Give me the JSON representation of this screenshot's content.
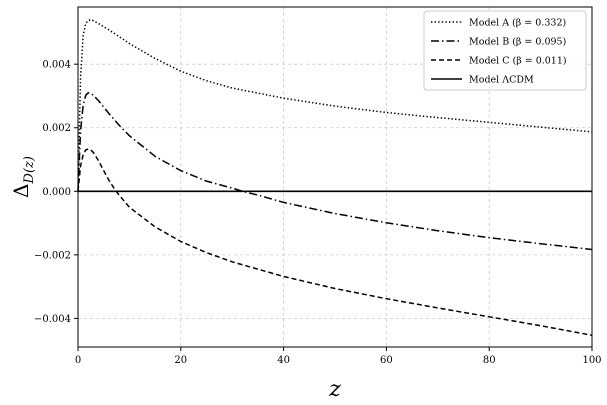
{
  "chart_data": {
    "type": "line",
    "xlabel": "z",
    "ylabel": "Δ",
    "ylabel_subscript": "D(z)",
    "xlim": [
      0,
      100
    ],
    "ylim": [
      -0.0049,
      0.0058
    ],
    "xticks": [
      0,
      20,
      40,
      60,
      80,
      100
    ],
    "xtick_labels": [
      "0",
      "20",
      "40",
      "60",
      "80",
      "100"
    ],
    "yticks": [
      -0.004,
      -0.002,
      0.0,
      0.002,
      0.004
    ],
    "ytick_labels": [
      "−0.004",
      "−0.002",
      "0.000",
      "0.002",
      "0.004"
    ],
    "grid": true,
    "legend_position": "top-right",
    "series": [
      {
        "name": "Model A (β = 0.332)",
        "style": "dotted",
        "color": "#000000",
        "x": [
          0,
          0.5,
          1,
          1.5,
          2,
          2.5,
          3,
          4,
          5,
          6,
          8,
          10,
          15,
          20,
          25,
          30,
          40,
          50,
          60,
          70,
          80,
          90,
          100
        ],
        "y": [
          0.0,
          0.0036,
          0.0049,
          0.00528,
          0.00538,
          0.0054,
          0.00537,
          0.00528,
          0.00518,
          0.00508,
          0.00487,
          0.00465,
          0.00418,
          0.00378,
          0.00348,
          0.00325,
          0.00293,
          0.00268,
          0.00248,
          0.00232,
          0.00217,
          0.00202,
          0.00187
        ]
      },
      {
        "name": "Model B (β = 0.095)",
        "style": "dashdot",
        "color": "#000000",
        "x": [
          0,
          0.5,
          1,
          1.5,
          2,
          2.5,
          3,
          4,
          5,
          6,
          8,
          10,
          15,
          20,
          25,
          30,
          32,
          35,
          40,
          50,
          60,
          70,
          80,
          90,
          100
        ],
        "y": [
          0.0,
          0.0019,
          0.0027,
          0.00302,
          0.0031,
          0.00308,
          0.00302,
          0.00285,
          0.00265,
          0.00245,
          0.00208,
          0.00175,
          0.0011,
          0.00065,
          0.00032,
          0.0001,
          0.0,
          -0.00012,
          -0.00035,
          -0.0007,
          -0.00099,
          -0.00124,
          -0.00146,
          -0.00165,
          -0.00183
        ]
      },
      {
        "name": "Model C (β = 0.011)",
        "style": "dashed",
        "color": "#000000",
        "x": [
          0,
          0.5,
          1,
          1.5,
          2,
          2.5,
          3,
          4,
          5,
          6,
          7,
          8,
          10,
          15,
          20,
          25,
          30,
          40,
          50,
          60,
          70,
          80,
          90,
          100
        ],
        "y": [
          0.0,
          0.0008,
          0.00115,
          0.0013,
          0.00133,
          0.0013,
          0.00122,
          0.00096,
          0.00065,
          0.00035,
          0.0001,
          -0.00012,
          -0.0005,
          -0.00112,
          -0.00158,
          -0.00193,
          -0.00222,
          -0.00268,
          -0.00306,
          -0.00338,
          -0.00367,
          -0.00395,
          -0.00423,
          -0.00453
        ]
      },
      {
        "name": "Model ΛCDM",
        "style": "solid",
        "color": "#000000",
        "x": [
          0,
          100
        ],
        "y": [
          0.0,
          0.0
        ]
      }
    ]
  }
}
